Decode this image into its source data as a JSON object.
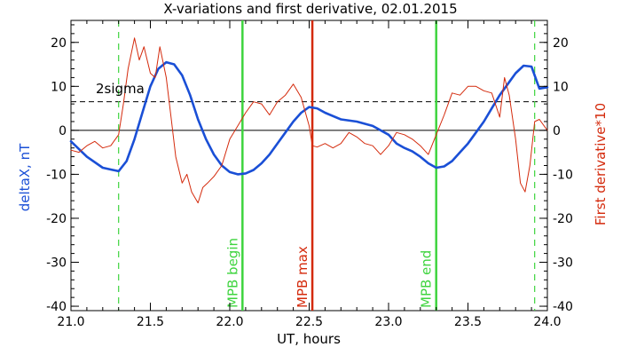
{
  "chart_data": {
    "type": "line",
    "title": "X-variations and first derivative, 02.01.2015",
    "xlabel": "UT, hours",
    "ylabel": "deltaX, nT",
    "y2label": "First derivative*10",
    "xlim": [
      21.0,
      24.0
    ],
    "ylim": [
      -41,
      25
    ],
    "y2lim": [
      -41,
      25
    ],
    "x_ticks": [
      21.0,
      21.5,
      22.0,
      22.5,
      23.0,
      23.5,
      24.0
    ],
    "x_tick_labels": [
      "21.0",
      "21.5",
      "22.0",
      "22.5",
      "23.0",
      "23.5",
      "24.0"
    ],
    "y_ticks": [
      20,
      10,
      0,
      -10,
      -20,
      -30,
      -40
    ],
    "y_tick_labels": [
      "20",
      "10",
      "0",
      "-10",
      "-20",
      "-30",
      "-40"
    ],
    "y2_ticks": [
      20,
      10,
      0,
      -10,
      -20,
      -30,
      -40
    ],
    "y2_tick_labels": [
      "20",
      "10",
      "0",
      "-10",
      "-20",
      "-30",
      "-40"
    ],
    "zero_line": 0,
    "sigma_level": 6.5,
    "sigma_label": "2sigma",
    "series": [
      {
        "name": "deltaX, nT",
        "color": "#1a4fd6",
        "axis": "left",
        "x": [
          21.0,
          21.1,
          21.2,
          21.3,
          21.35,
          21.4,
          21.45,
          21.5,
          21.55,
          21.6,
          21.65,
          21.7,
          21.75,
          21.8,
          21.85,
          21.9,
          21.95,
          22.0,
          22.05,
          22.1,
          22.15,
          22.2,
          22.25,
          22.3,
          22.35,
          22.4,
          22.45,
          22.5,
          22.55,
          22.6,
          22.7,
          22.8,
          22.9,
          23.0,
          23.05,
          23.1,
          23.15,
          23.2,
          23.25,
          23.3,
          23.35,
          23.4,
          23.45,
          23.5,
          23.55,
          23.6,
          23.65,
          23.7,
          23.75,
          23.8,
          23.85,
          23.9,
          23.95,
          24.0
        ],
        "y": [
          -2.5,
          -6.0,
          -8.5,
          -9.3,
          -7.0,
          -2.0,
          4.0,
          10.0,
          14.0,
          15.5,
          15.0,
          12.5,
          8.0,
          2.5,
          -2.0,
          -5.5,
          -8.0,
          -9.5,
          -10.0,
          -9.8,
          -9.0,
          -7.5,
          -5.5,
          -3.0,
          -0.5,
          2.0,
          4.0,
          5.3,
          5.0,
          4.0,
          2.5,
          2.0,
          1.0,
          -1.0,
          -3.0,
          -4.0,
          -4.8,
          -6.0,
          -7.5,
          -8.5,
          -8.2,
          -7.0,
          -5.0,
          -3.0,
          -0.5,
          2.0,
          5.0,
          8.0,
          10.5,
          13.0,
          14.7,
          14.5,
          9.5,
          9.8
        ]
      },
      {
        "name": "First derivative*10",
        "color": "#d42a0c",
        "axis": "right",
        "x": [
          21.0,
          21.05,
          21.1,
          21.15,
          21.2,
          21.25,
          21.3,
          21.33,
          21.36,
          21.4,
          21.43,
          21.46,
          21.5,
          21.53,
          21.56,
          21.6,
          21.63,
          21.66,
          21.7,
          21.73,
          21.76,
          21.8,
          21.83,
          21.86,
          21.9,
          21.95,
          22.0,
          22.05,
          22.1,
          22.15,
          22.2,
          22.25,
          22.3,
          22.35,
          22.4,
          22.45,
          22.5,
          22.52,
          22.55,
          22.6,
          22.65,
          22.7,
          22.75,
          22.8,
          22.85,
          22.9,
          22.95,
          23.0,
          23.05,
          23.1,
          23.15,
          23.2,
          23.25,
          23.3,
          23.35,
          23.4,
          23.45,
          23.5,
          23.55,
          23.6,
          23.65,
          23.7,
          23.73,
          23.76,
          23.8,
          23.83,
          23.86,
          23.89,
          23.92,
          23.95,
          24.0
        ],
        "y": [
          -4.5,
          -5.0,
          -3.5,
          -2.5,
          -4.0,
          -3.5,
          -1.0,
          6.0,
          14.0,
          21.0,
          16.0,
          19.0,
          13.0,
          12.0,
          19.0,
          12.0,
          3.0,
          -6.0,
          -12.0,
          -10.0,
          -14.0,
          -16.5,
          -13.0,
          -12.0,
          -10.5,
          -8.0,
          -2.0,
          1.0,
          4.0,
          6.5,
          6.0,
          3.5,
          6.5,
          8.0,
          10.5,
          7.5,
          1.0,
          -3.5,
          -3.8,
          -3.0,
          -4.0,
          -3.0,
          -0.5,
          -1.5,
          -3.0,
          -3.5,
          -5.5,
          -3.5,
          -0.5,
          -1.0,
          -2.0,
          -3.5,
          -5.5,
          -1.0,
          3.5,
          8.5,
          8.0,
          10.0,
          10.0,
          9.0,
          8.5,
          3.0,
          12.0,
          8.0,
          -2.0,
          -12.0,
          -14.0,
          -8.0,
          2.0,
          2.5,
          0.0
        ]
      }
    ],
    "markers": [
      {
        "x": 21.3,
        "style": "dashed",
        "color": "#3ed43e",
        "label": ""
      },
      {
        "x": 22.08,
        "style": "solid",
        "color": "#3ed43e",
        "label": "MPB begin"
      },
      {
        "x": 22.52,
        "style": "solid",
        "color": "#d42a0c",
        "label": "MPB max"
      },
      {
        "x": 23.3,
        "style": "solid",
        "color": "#3ed43e",
        "label": "MPB end"
      },
      {
        "x": 23.92,
        "style": "dashed",
        "color": "#3ed43e",
        "label": ""
      }
    ],
    "colors": {
      "left_axis": "#1a4fd6",
      "right_axis": "#d42a0c",
      "axes": "#000000"
    }
  }
}
